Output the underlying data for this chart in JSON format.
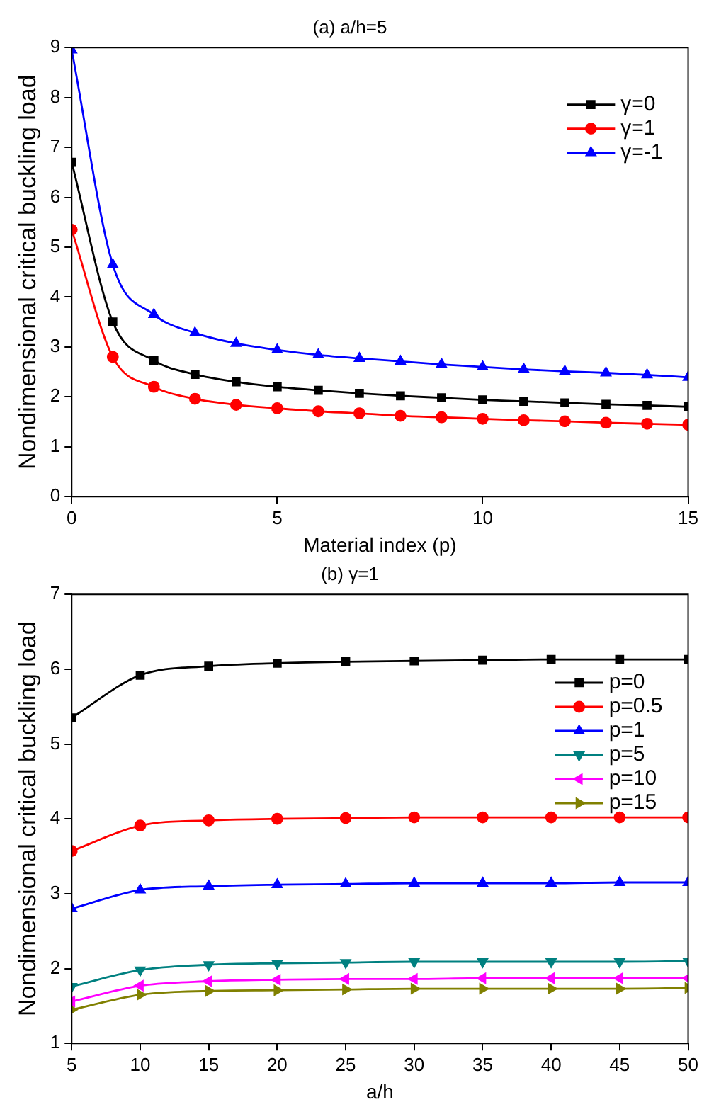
{
  "chart_data": [
    {
      "type": "line",
      "title": "(a) a/h=5",
      "xlabel": "Material index (p)",
      "ylabel": "Nondimensional critical buckling load",
      "x": [
        0,
        1,
        2,
        3,
        4,
        5,
        6,
        7,
        8,
        9,
        10,
        11,
        12,
        13,
        14,
        15
      ],
      "series": [
        {
          "name": "γ=0",
          "color": "#000000",
          "marker": "square",
          "values": [
            6.7,
            3.5,
            2.73,
            2.45,
            2.3,
            2.2,
            2.13,
            2.07,
            2.02,
            1.98,
            1.94,
            1.91,
            1.88,
            1.85,
            1.83,
            1.8
          ]
        },
        {
          "name": "γ=1",
          "color": "#ff0000",
          "marker": "circle",
          "values": [
            5.35,
            2.8,
            2.2,
            1.96,
            1.84,
            1.77,
            1.71,
            1.67,
            1.62,
            1.59,
            1.56,
            1.53,
            1.51,
            1.48,
            1.46,
            1.44
          ]
        },
        {
          "name": "γ=-1",
          "color": "#0000ff",
          "marker": "triangle",
          "values": [
            8.95,
            4.65,
            3.65,
            3.28,
            3.07,
            2.94,
            2.84,
            2.77,
            2.71,
            2.65,
            2.6,
            2.55,
            2.51,
            2.48,
            2.44,
            2.39
          ]
        }
      ],
      "xlim": [
        0,
        15
      ],
      "xticks": [
        0,
        5,
        10,
        15
      ],
      "ylim": [
        0,
        9
      ],
      "yticks": [
        0,
        1,
        2,
        3,
        4,
        5,
        6,
        7,
        8,
        9
      ],
      "grid": false,
      "legend": "top right"
    },
    {
      "type": "line",
      "title": "(b) γ=1",
      "xlabel": "a/h",
      "ylabel": "Nondimensional critical buckling load",
      "x": [
        5,
        10,
        15,
        20,
        25,
        30,
        35,
        40,
        45,
        50
      ],
      "series": [
        {
          "name": "p=0",
          "color": "#000000",
          "marker": "square",
          "values": [
            5.35,
            5.92,
            6.04,
            6.08,
            6.1,
            6.11,
            6.12,
            6.13,
            6.13,
            6.13
          ]
        },
        {
          "name": "p=0.5",
          "color": "#ff0000",
          "marker": "circle",
          "values": [
            3.57,
            3.91,
            3.98,
            4.0,
            4.01,
            4.02,
            4.02,
            4.02,
            4.02,
            4.02
          ]
        },
        {
          "name": "p=1",
          "color": "#0000ff",
          "marker": "triangle",
          "values": [
            2.8,
            3.05,
            3.1,
            3.12,
            3.13,
            3.14,
            3.14,
            3.14,
            3.15,
            3.15
          ]
        },
        {
          "name": "p=5",
          "color": "#008080",
          "marker": "triangle-down",
          "values": [
            1.76,
            1.98,
            2.05,
            2.07,
            2.08,
            2.09,
            2.09,
            2.09,
            2.09,
            2.1
          ]
        },
        {
          "name": "p=10",
          "color": "#ff00ff",
          "marker": "triangle-left",
          "values": [
            1.56,
            1.77,
            1.83,
            1.85,
            1.86,
            1.86,
            1.87,
            1.87,
            1.87,
            1.87
          ]
        },
        {
          "name": "p=15",
          "color": "#808000",
          "marker": "triangle-right",
          "values": [
            1.45,
            1.65,
            1.7,
            1.71,
            1.72,
            1.73,
            1.73,
            1.73,
            1.73,
            1.74
          ]
        }
      ],
      "xlim": [
        5,
        50
      ],
      "xticks": [
        5,
        10,
        15,
        20,
        25,
        30,
        35,
        40,
        45,
        50
      ],
      "ylim": [
        1,
        7
      ],
      "yticks": [
        1,
        2,
        3,
        4,
        5,
        6,
        7
      ],
      "grid": false,
      "legend": "right"
    }
  ]
}
